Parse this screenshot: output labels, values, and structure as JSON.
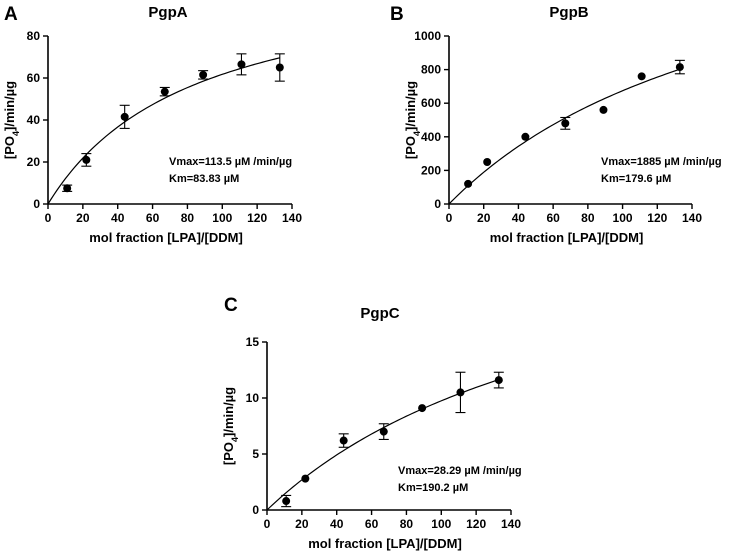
{
  "chart_data": [
    {
      "type": "scatter",
      "panel": "A",
      "title": "PgpA",
      "xlabel": "mol fraction [LPA]/[DDM]",
      "ylabel": "[PO4]/min/µg",
      "ylabel_main": "[PO",
      "ylabel_sub": "4",
      "ylabel_rest": "]/min/µg",
      "xlim": [
        0,
        140
      ],
      "ylim": [
        0,
        80
      ],
      "xticks": [
        0,
        20,
        40,
        60,
        80,
        100,
        120,
        140
      ],
      "yticks": [
        0,
        20,
        40,
        60,
        80
      ],
      "x": [
        11,
        22,
        44,
        67,
        89,
        111,
        133
      ],
      "y": [
        7.5,
        21,
        41.5,
        53.5,
        61.5,
        66.5,
        65
      ],
      "err": [
        1.5,
        3,
        5.5,
        2,
        2,
        5,
        6.5
      ],
      "fit": {
        "model": "michaelis-menten",
        "vmax": 113.5,
        "km": 83.83
      },
      "annotations": [
        "Vmax=113.5 µM /min/µg",
        "Km=83.83 µM"
      ],
      "grid": false
    },
    {
      "type": "scatter",
      "panel": "B",
      "title": "PgpB",
      "xlabel": "mol fraction [LPA]/[DDM]",
      "ylabel": "[PO4]/min/µg",
      "ylabel_main": "[PO",
      "ylabel_sub": "4",
      "ylabel_rest": "]/min/µg",
      "xlim": [
        0,
        140
      ],
      "ylim": [
        0,
        1000
      ],
      "xticks": [
        0,
        20,
        40,
        60,
        80,
        100,
        120,
        140
      ],
      "yticks": [
        0,
        200,
        400,
        600,
        800,
        1000
      ],
      "x": [
        11,
        22,
        44,
        67,
        89,
        111,
        133
      ],
      "y": [
        120,
        250,
        400,
        480,
        560,
        760,
        815
      ],
      "err": [
        0,
        0,
        0,
        35,
        0,
        0,
        40
      ],
      "fit": {
        "model": "michaelis-menten",
        "vmax": 1885,
        "km": 179.6
      },
      "annotations": [
        "Vmax=1885 µM /min/µg",
        "Km=179.6  µM"
      ],
      "grid": false
    },
    {
      "type": "scatter",
      "panel": "C",
      "title": "PgpC",
      "xlabel": "mol fraction [LPA]/[DDM]",
      "ylabel": "[PO4]/min/µg",
      "ylabel_main": "[PO",
      "ylabel_sub": "4",
      "ylabel_rest": "]/min/µg",
      "xlim": [
        0,
        140
      ],
      "ylim": [
        0,
        15
      ],
      "xticks": [
        0,
        20,
        40,
        60,
        80,
        100,
        120,
        140
      ],
      "yticks": [
        0,
        5,
        10,
        15
      ],
      "x": [
        11,
        22,
        44,
        67,
        89,
        111,
        133
      ],
      "y": [
        0.8,
        2.8,
        6.2,
        7.0,
        9.1,
        10.5,
        11.6
      ],
      "err": [
        0.5,
        0,
        0.6,
        0.7,
        0,
        1.8,
        0.7
      ],
      "fit": {
        "model": "michaelis-menten",
        "vmax": 28.29,
        "km": 190.2
      },
      "annotations": [
        "Vmax=28.29 µM /min/µg",
        "Km=190.2 µM"
      ],
      "grid": false
    }
  ]
}
